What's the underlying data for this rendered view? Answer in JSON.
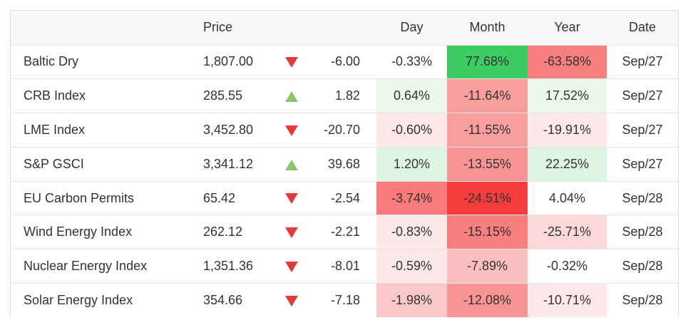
{
  "headers": {
    "name": "",
    "price": "Price",
    "arrow": "",
    "change": "",
    "day": "Day",
    "month": "Month",
    "year": "Year",
    "date": "Date"
  },
  "rows": [
    {
      "name": "Baltic Dry",
      "price": "1,807.00",
      "direction": "down",
      "change": "-6.00",
      "day": "-0.33%",
      "month": "77.68%",
      "year": "-63.58%",
      "date": "Sep/27",
      "colors": {
        "day": "#ffffff",
        "month": "#3dcb63",
        "year": "#f77f7f"
      }
    },
    {
      "name": "CRB Index",
      "price": "285.55",
      "direction": "up",
      "change": "1.82",
      "day": "0.64%",
      "month": "-11.64%",
      "year": "17.52%",
      "date": "Sep/27",
      "colors": {
        "day": "#eaf8ec",
        "month": "#fa9f9f",
        "year": "#eaf8ec"
      }
    },
    {
      "name": "LME Index",
      "price": "3,452.80",
      "direction": "down",
      "change": "-20.70",
      "day": "-0.60%",
      "month": "-11.55%",
      "year": "-19.91%",
      "date": "Sep/27",
      "colors": {
        "day": "#fde9e9",
        "month": "#fa9f9f",
        "year": "#fde9e9"
      }
    },
    {
      "name": "S&P GSCI",
      "price": "3,341.12",
      "direction": "up",
      "change": "39.68",
      "day": "1.20%",
      "month": "-13.55%",
      "year": "22.25%",
      "date": "Sep/27",
      "colors": {
        "day": "#dff5e3",
        "month": "#f99494",
        "year": "#dff5e3"
      }
    },
    {
      "name": "EU Carbon Permits",
      "price": "65.42",
      "direction": "down",
      "change": "-2.54",
      "day": "-3.74%",
      "month": "-24.51%",
      "year": "4.04%",
      "date": "Sep/28",
      "colors": {
        "day": "#f87a7a",
        "month": "#f43c3c",
        "year": "#ffffff"
      }
    },
    {
      "name": "Wind Energy Index",
      "price": "262.12",
      "direction": "down",
      "change": "-2.21",
      "day": "-0.83%",
      "month": "-15.15%",
      "year": "-25.71%",
      "date": "Sep/28",
      "colors": {
        "day": "#fde9e9",
        "month": "#f77f7f",
        "year": "#fcd8d8"
      }
    },
    {
      "name": "Nuclear Energy Index",
      "price": "1,351.36",
      "direction": "down",
      "change": "-8.01",
      "day": "-0.59%",
      "month": "-7.89%",
      "year": "-0.32%",
      "date": "Sep/28",
      "colors": {
        "day": "#fde9e9",
        "month": "#fbbfbf",
        "year": "#ffffff"
      }
    },
    {
      "name": "Solar Energy Index",
      "price": "354.66",
      "direction": "down",
      "change": "-7.18",
      "day": "-1.98%",
      "month": "-12.08%",
      "year": "-10.71%",
      "date": "Sep/28",
      "colors": {
        "day": "#fbc8c8",
        "month": "#f99494",
        "year": "#fde9e9"
      }
    }
  ]
}
